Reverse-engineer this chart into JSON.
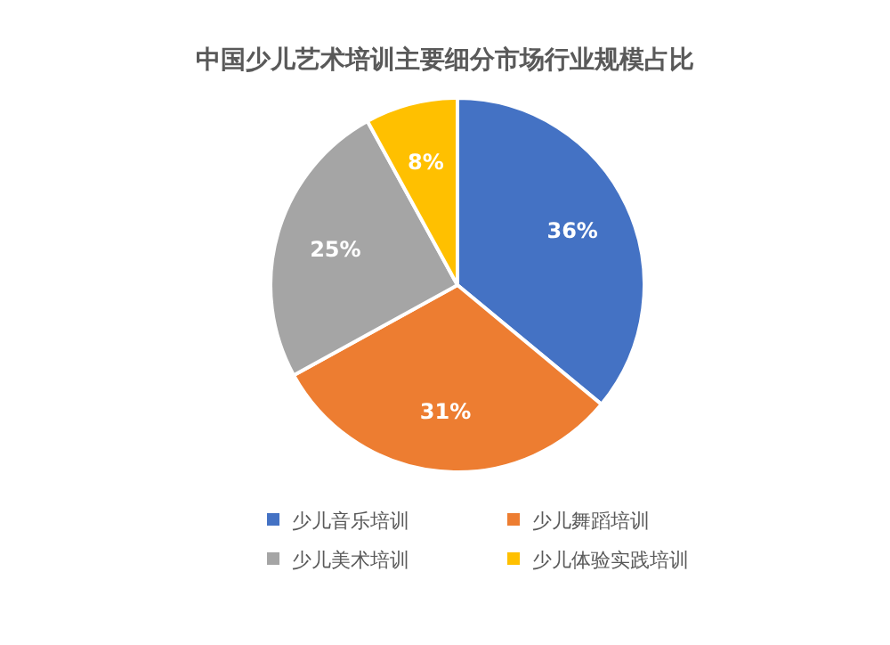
{
  "chart_data": {
    "type": "pie",
    "title": "中国少儿艺术培训主要细分市场行业规模占比",
    "categories": [
      "少儿音乐培训",
      "少儿舞蹈培训",
      "少儿美术培训",
      "少儿体验实践培训"
    ],
    "values": [
      36,
      31,
      25,
      8
    ],
    "colors": [
      "#4472c4",
      "#ed7d31",
      "#a5a5a5",
      "#ffc000"
    ],
    "value_labels": [
      "36%",
      "31%",
      "25%",
      "8%"
    ],
    "legend": "bottom"
  }
}
